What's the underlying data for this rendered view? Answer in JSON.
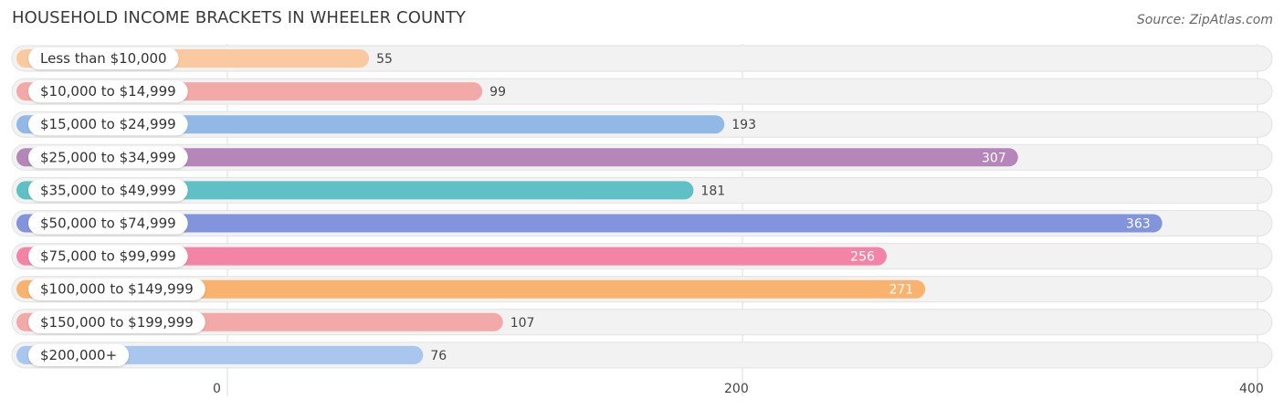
{
  "header": {
    "title": "HOUSEHOLD INCOME BRACKETS IN WHEELER COUNTY",
    "source": "Source: ZipAtlas.com"
  },
  "chart_data": {
    "type": "bar",
    "orientation": "horizontal",
    "title": "HOUSEHOLD INCOME BRACKETS IN WHEELER COUNTY",
    "categories": [
      "Less than $10,000",
      "$10,000 to $14,999",
      "$15,000 to $24,999",
      "$25,000 to $34,999",
      "$35,000 to $49,999",
      "$50,000 to $74,999",
      "$75,000 to $99,999",
      "$100,000 to $149,999",
      "$150,000 to $199,999",
      "$200,000+"
    ],
    "values": [
      55,
      99,
      193,
      307,
      181,
      363,
      256,
      271,
      107,
      76
    ],
    "colors": [
      "#fbc9a0",
      "#f2a9a8",
      "#92b9e6",
      "#b586ba",
      "#5fc0c6",
      "#8295dc",
      "#f484a6",
      "#fab26f",
      "#f2a9a8",
      "#a9c6ee"
    ],
    "xlim": [
      0,
      400
    ],
    "xticks": [
      0,
      200,
      400
    ],
    "grid": true
  }
}
